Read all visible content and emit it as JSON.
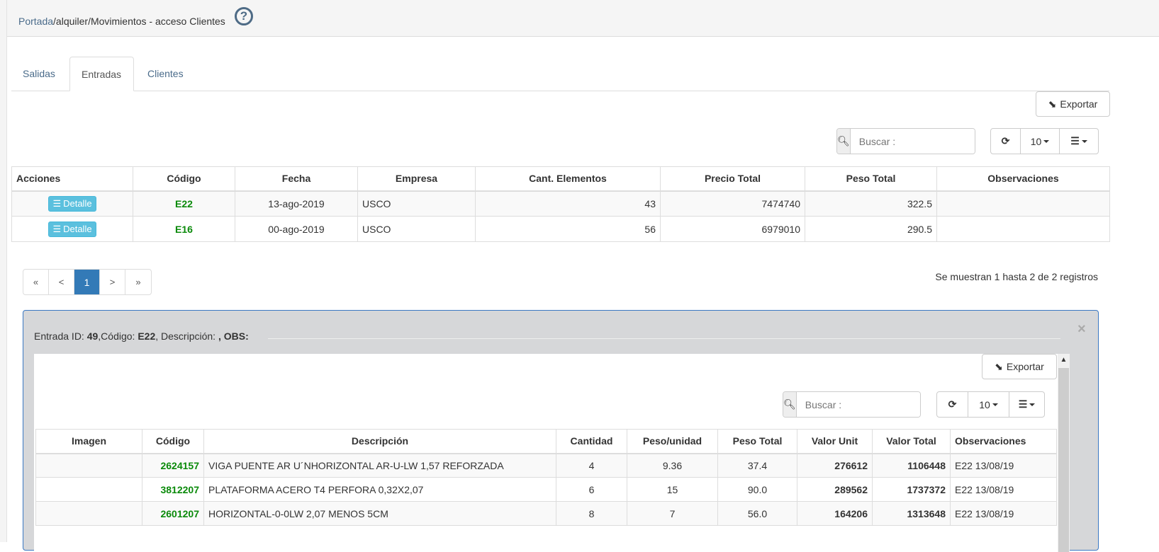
{
  "breadcrumb": {
    "home": "Portada",
    "rest": "/alquiler/Movimientos - acceso Clientes"
  },
  "tabs": [
    {
      "label": "Salidas"
    },
    {
      "label": "Entradas"
    },
    {
      "label": "Clientes"
    }
  ],
  "toolbar": {
    "export_label": "Exportar",
    "search_placeholder": "Buscar :",
    "page_size": "10"
  },
  "main_table": {
    "headers": [
      "Acciones",
      "Código",
      "Fecha",
      "Empresa",
      "Cant. Elementos",
      "Precio Total",
      "Peso Total",
      "Observaciones"
    ],
    "action_label": "Detalle",
    "rows": [
      [
        "E22",
        "13-ago-2019",
        "USCO",
        "43",
        "7474740",
        "322.5",
        ""
      ],
      [
        "E16",
        "00-ago-2019",
        "USCO",
        "56",
        "6979010",
        "290.5",
        ""
      ]
    ]
  },
  "pagination": {
    "first": "«",
    "prev": "<",
    "current": "1",
    "next": ">",
    "last": "»",
    "summary": "Se muestran 1 hasta 2 de 2 registros"
  },
  "detail": {
    "l1": "Entrada ID: ",
    "id": "49",
    "l2": ",Código: ",
    "code": "E22",
    "l3": ", Descripción: ",
    "obs": ", OBS:",
    "close": "×",
    "export_label": "Exportar",
    "search_placeholder": "Buscar :",
    "page_size": "10",
    "headers": [
      "Imagen",
      "Código",
      "Descripción",
      "Cantidad",
      "Peso/unidad",
      "Peso Total",
      "Valor Unit",
      "Valor Total",
      "Observaciones"
    ],
    "rows": [
      [
        "",
        "2624157",
        "VIGA PUENTE AR U´NHORIZONTAL AR-U-LW 1,57 REFORZADA",
        "4",
        "9.36",
        "37.4",
        "276612",
        "1106448",
        "E22 13/08/19"
      ],
      [
        "",
        "3812207",
        "PLATAFORMA ACERO T4 PERFORA 0,32X2,07",
        "6",
        "15",
        "90.0",
        "289562",
        "1737372",
        "E22 13/08/19"
      ],
      [
        "",
        "2601207",
        "HORIZONTAL-0-0LW 2,07 MENOS 5CM",
        "8",
        "7",
        "56.0",
        "164206",
        "1313648",
        "E22 13/08/19"
      ]
    ]
  }
}
